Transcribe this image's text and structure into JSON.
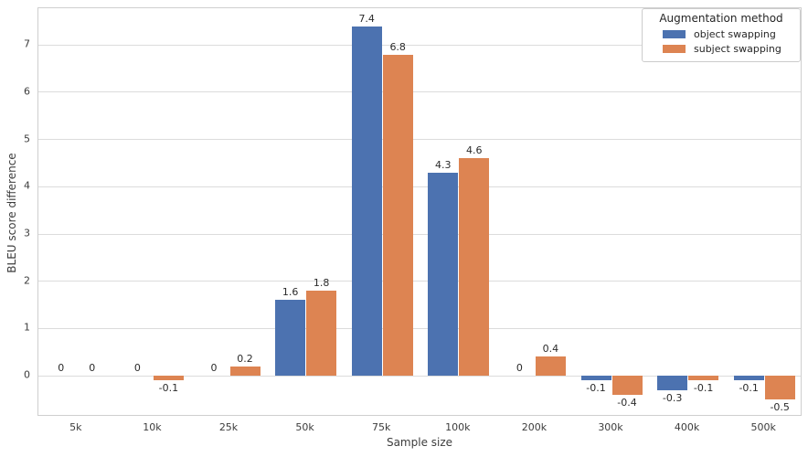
{
  "chart_data": {
    "type": "bar",
    "title": "",
    "xlabel": "Sample size",
    "ylabel": "BLEU score difference",
    "categories": [
      "5k",
      "10k",
      "25k",
      "50k",
      "75k",
      "100k",
      "200k",
      "300k",
      "400k",
      "500k"
    ],
    "series": [
      {
        "name": "object swapping",
        "color": "#4c72b0",
        "values": [
          0,
          0,
          0,
          1.6,
          7.4,
          4.3,
          0,
          -0.1,
          -0.3,
          -0.1
        ],
        "labels": [
          "0",
          "0",
          "0",
          "1.6",
          "7.4",
          "4.3",
          "0",
          "-0.1",
          "-0.3",
          "-0.1"
        ]
      },
      {
        "name": "subject swapping",
        "color": "#dd8452",
        "values": [
          0,
          -0.1,
          0.2,
          1.8,
          6.8,
          4.6,
          0.4,
          -0.4,
          -0.1,
          -0.5
        ],
        "labels": [
          "0",
          "-0.1",
          "0.2",
          "1.8",
          "6.8",
          "4.6",
          "0.4",
          "-0.4",
          "-0.1",
          "-0.5"
        ]
      }
    ],
    "legend": {
      "title": "Augmentation method",
      "position": "upper right"
    },
    "y_ticks": [
      0,
      1,
      2,
      3,
      4,
      5,
      6,
      7
    ],
    "ylim": [
      -0.87,
      7.78
    ],
    "grid": "horizontal",
    "colors": {
      "grid": "#dcdcdc",
      "axis_border": "#cfcfcf",
      "text": "#3c3c3c"
    }
  }
}
